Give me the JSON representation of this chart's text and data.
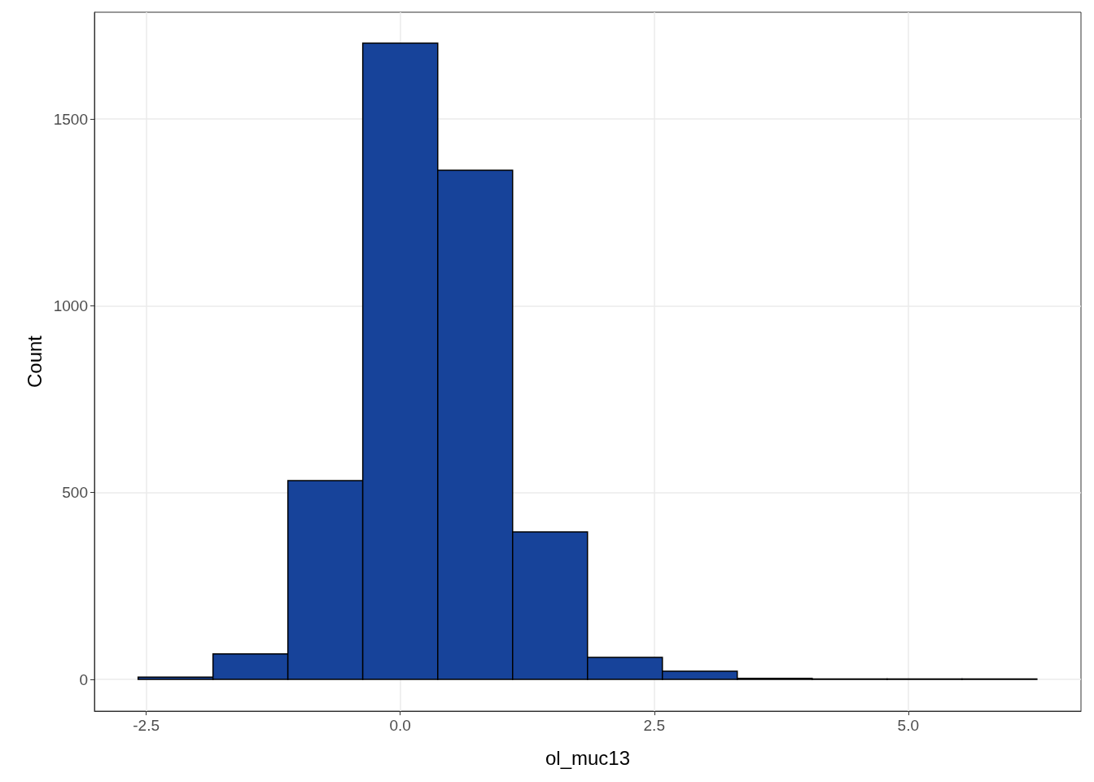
{
  "chart_data": {
    "type": "histogram",
    "xlabel": "ol_muc13",
    "ylabel": "Count",
    "bins": [
      -2.58,
      -1.843,
      -1.106,
      -0.369,
      0.369,
      1.106,
      1.843,
      2.58,
      3.317,
      4.054,
      4.792,
      5.529,
      6.266
    ],
    "values": [
      6,
      68,
      532,
      1703,
      1363,
      395,
      59,
      22,
      3,
      1,
      1,
      1
    ],
    "color": "#17439a",
    "xlim": [
      -3.01,
      6.7
    ],
    "xticks": [
      {
        "value": -2.5,
        "label": "-2.5"
      },
      {
        "value": 0,
        "label": "0.0"
      },
      {
        "value": 2.5,
        "label": "2.5"
      },
      {
        "value": 5,
        "label": "5.0"
      }
    ],
    "ylim": [
      -85,
      1786
    ],
    "yticks": [
      0,
      500,
      1000,
      1500
    ],
    "grid": true
  }
}
